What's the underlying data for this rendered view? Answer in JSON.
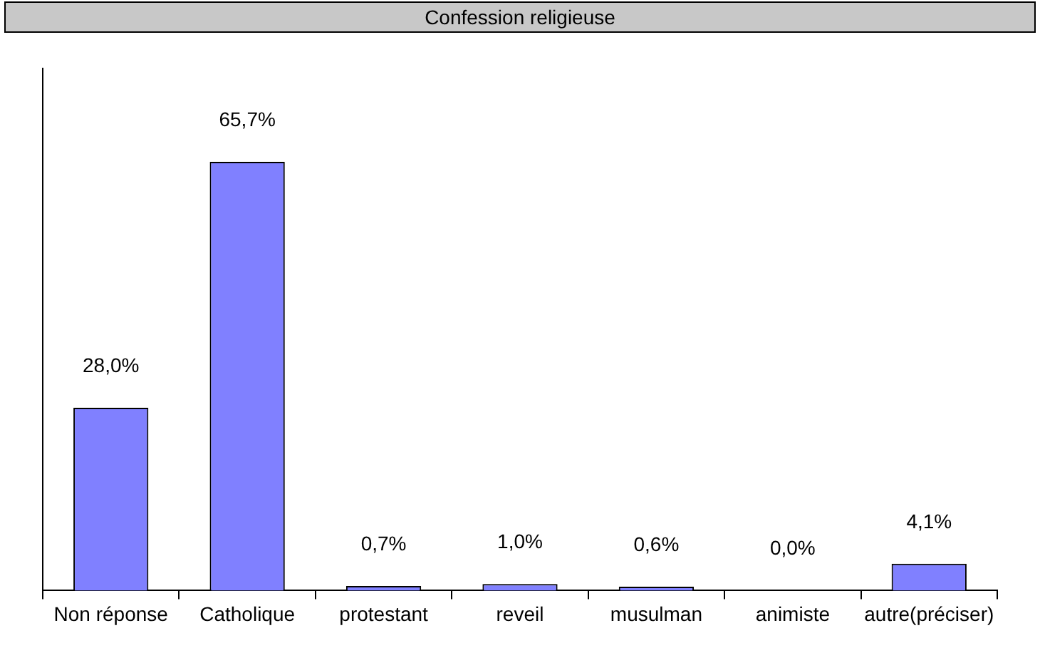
{
  "chart_data": {
    "type": "bar",
    "title": "Confession religieuse",
    "categories": [
      "Non réponse",
      "Catholique",
      "protestant",
      "reveil",
      "musulman",
      "animiste",
      "autre(préciser)"
    ],
    "values": [
      28.0,
      65.7,
      0.7,
      1.0,
      0.6,
      0.0,
      4.1
    ],
    "value_labels": [
      "28,0%",
      "65,7%",
      "0,7%",
      "1,0%",
      "0,6%",
      "0,0%",
      "4,1%"
    ],
    "color": "#8080ff",
    "ylim": [
      0,
      80
    ],
    "tick_labels": "x",
    "grid": false,
    "legend": false
  }
}
